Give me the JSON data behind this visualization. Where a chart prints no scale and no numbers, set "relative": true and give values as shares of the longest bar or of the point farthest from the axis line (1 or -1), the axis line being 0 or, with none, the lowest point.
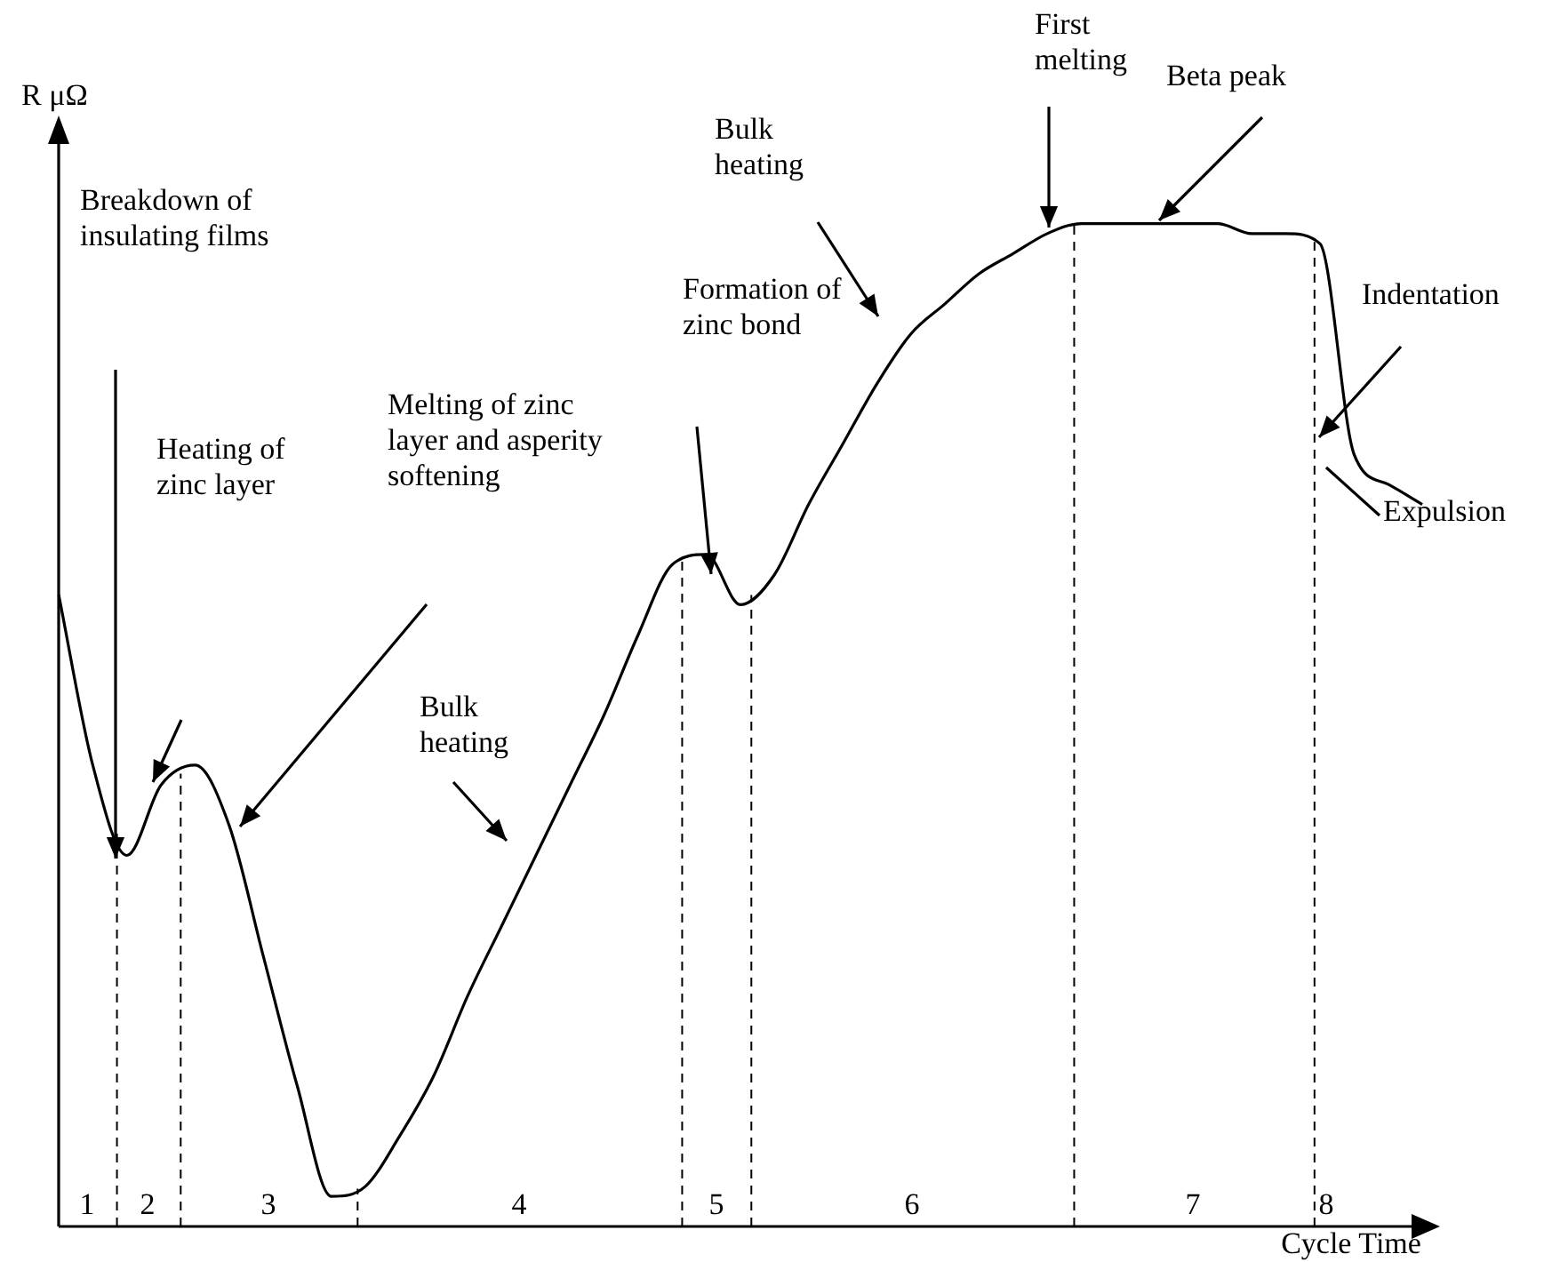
{
  "chart_data": {
    "type": "line",
    "relative": true,
    "xlabel": "Cycle Time",
    "ylabel": "R μΩ",
    "categories": [
      null,
      null,
      null,
      null,
      null,
      null,
      null,
      null,
      null,
      null,
      null,
      null,
      null,
      null,
      null,
      null,
      null,
      null,
      null,
      null,
      null,
      null,
      null,
      null,
      null,
      null,
      null,
      null,
      null,
      null,
      null,
      null,
      null,
      null,
      null,
      null,
      null,
      null,
      null,
      null,
      null
    ],
    "series": [
      {
        "color": "#000000",
        "values": [
          0.63,
          0.46,
          0.37,
          0.44,
          0.46,
          0.4,
          0.27,
          0.14,
          0.03,
          0.04,
          0.09,
          0.15,
          0.23,
          0.3,
          0.37,
          0.44,
          0.51,
          0.59,
          0.66,
          0.67,
          0.62,
          0.65,
          0.72,
          0.78,
          0.84,
          0.89,
          0.92,
          0.95,
          0.97,
          0.99,
          1.0,
          1.0,
          1.0,
          1.0,
          1.0,
          0.99,
          0.99,
          0.98,
          0.77,
          0.74,
          0.72
        ]
      }
    ],
    "marker": "none",
    "line_style": "solid",
    "legend": false,
    "annotations": [
      "Breakdown of insulating films",
      "Heating of zinc layer",
      "Melting of zinc layer and asperity softening",
      "Bulk heating",
      "Formation of zinc bond",
      "Bulk heating",
      "First melting",
      "Beta peak",
      "Indentation",
      "Expulsion",
      "1",
      "2",
      "3",
      "4",
      "5",
      "6",
      "7",
      "8"
    ]
  }
}
